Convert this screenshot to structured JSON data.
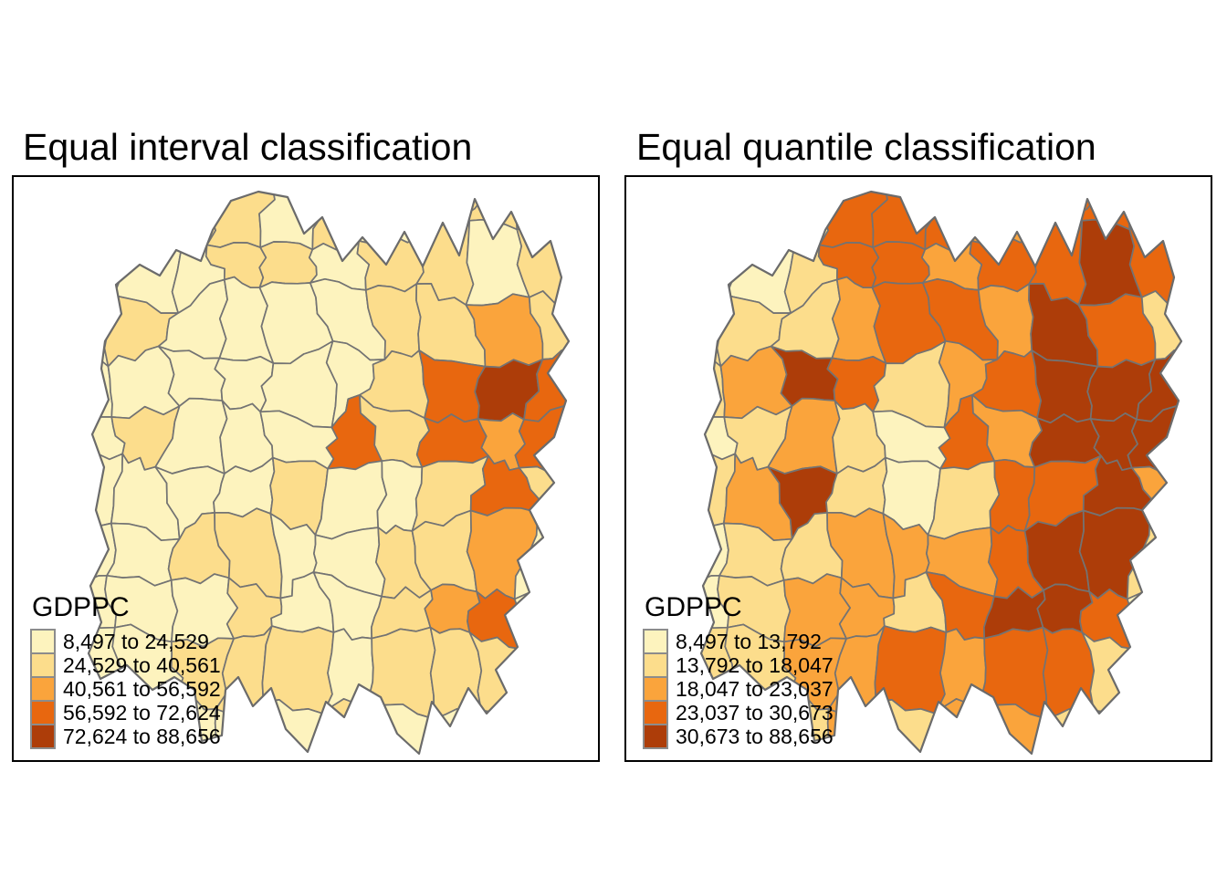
{
  "map_style": {
    "palette": [
      "#FDF3BE",
      "#FCDD8C",
      "#FAA43C",
      "#E8670F",
      "#AD3D09"
    ],
    "county_border_color": "#737373",
    "province_outline_color": "#6b6b6b",
    "panel_border_color": "#000000",
    "background": "#ffffff",
    "legend_swatch_border_color": "#8c8c8c"
  },
  "panels": [
    {
      "title": "Equal interval classification",
      "legend": {
        "title": "GDPPC",
        "classes": [
          {
            "label": "8,497 to 24,529",
            "color": "#FDF3BE"
          },
          {
            "label": "24,529 to 40,561",
            "color": "#FCDD8C"
          },
          {
            "label": "40,561 to 56,592",
            "color": "#FAA43C"
          },
          {
            "label": "56,592 to 72,624",
            "color": "#E8670F"
          },
          {
            "label": "72,624 to 88,656",
            "color": "#AD3D09"
          }
        ]
      },
      "map": {
        "region_classes": [
          1,
          1,
          2,
          2,
          1,
          2,
          1,
          2,
          2,
          2,
          1,
          1,
          1,
          2,
          2,
          1,
          2,
          2,
          1,
          2,
          1,
          2,
          1,
          1,
          1,
          1,
          2,
          2,
          3,
          2,
          1,
          1,
          1,
          1,
          1,
          1,
          2,
          4,
          5,
          4,
          1,
          2,
          1,
          1,
          1,
          4,
          2,
          4,
          3,
          4,
          1,
          1,
          1,
          1,
          2,
          1,
          1,
          2,
          4,
          2,
          1,
          1,
          2,
          2,
          1,
          1,
          2,
          2,
          3,
          1,
          1,
          1,
          1,
          2,
          1,
          1,
          2,
          3,
          4,
          1,
          1,
          1,
          2,
          2,
          2,
          1,
          2,
          2,
          2,
          1,
          1,
          1,
          1,
          1,
          1,
          2,
          1,
          1,
          1,
          1
        ]
      }
    },
    {
      "title": "Equal quantile classification",
      "legend": {
        "title": "GDPPC",
        "classes": [
          {
            "label": "8,497 to 13,792",
            "color": "#FDF3BE"
          },
          {
            "label": "13,792 to 18,047",
            "color": "#FCDD8C"
          },
          {
            "label": "18,047 to 23,037",
            "color": "#FAA43C"
          },
          {
            "label": "23,037 to 30,673",
            "color": "#E8670F"
          },
          {
            "label": "30,673 to 88,656",
            "color": "#AD3D09"
          }
        ]
      },
      "map": {
        "region_classes": [
          1,
          2,
          2,
          4,
          4,
          4,
          3,
          4,
          4,
          4,
          1,
          1,
          2,
          4,
          4,
          3,
          4,
          4,
          5,
          4,
          2,
          2,
          2,
          3,
          4,
          4,
          3,
          5,
          4,
          2,
          2,
          3,
          5,
          4,
          2,
          3,
          4,
          5,
          5,
          5,
          1,
          2,
          3,
          2,
          1,
          4,
          3,
          5,
          5,
          5,
          2,
          3,
          5,
          2,
          1,
          2,
          4,
          4,
          5,
          3,
          1,
          2,
          2,
          3,
          3,
          3,
          4,
          5,
          5,
          2,
          1,
          2,
          3,
          3,
          2,
          4,
          5,
          5,
          4,
          1,
          2,
          2,
          3,
          3,
          4,
          3,
          4,
          4,
          2,
          1,
          1,
          2,
          2,
          3,
          2,
          3,
          3,
          2,
          1,
          1
        ]
      }
    }
  ],
  "chart_data": [
    {
      "type": "choropleth-map",
      "title": "Equal interval classification",
      "variable": "GDPPC",
      "classification_method": "equal interval",
      "n_classes": 5,
      "class_breaks": [
        8497,
        24529,
        40561,
        56592,
        72624,
        88656
      ],
      "legend_labels": [
        "8,497 to 24,529",
        "24,529 to 40,561",
        "40,561 to 56,592",
        "56,592 to 72,624",
        "72,624 to 88,656"
      ],
      "palette": [
        "#FDF3BE",
        "#FCDD8C",
        "#FAA43C",
        "#E8670F",
        "#AD3D09"
      ],
      "legend_position": "bottom-left inside frame",
      "notes": "County-level choropleth; most counties fall in the lowest class, a dark high-value cluster sits in the east-center"
    },
    {
      "type": "choropleth-map",
      "title": "Equal quantile classification",
      "variable": "GDPPC",
      "classification_method": "quantile",
      "n_classes": 5,
      "class_breaks": [
        8497,
        13792,
        18047,
        23037,
        30673,
        88656
      ],
      "legend_labels": [
        "8,497 to 13,792",
        "13,792 to 18,047",
        "18,047 to 23,037",
        "23,037 to 30,673",
        "30,673 to 88,656"
      ],
      "palette": [
        "#FDF3BE",
        "#FCDD8C",
        "#FAA43C",
        "#E8670F",
        "#AD3D09"
      ],
      "legend_position": "bottom-left inside frame",
      "notes": "Same counties; classes are evenly spread so east/southeast shows large dark high-value clusters, west remains light"
    }
  ]
}
